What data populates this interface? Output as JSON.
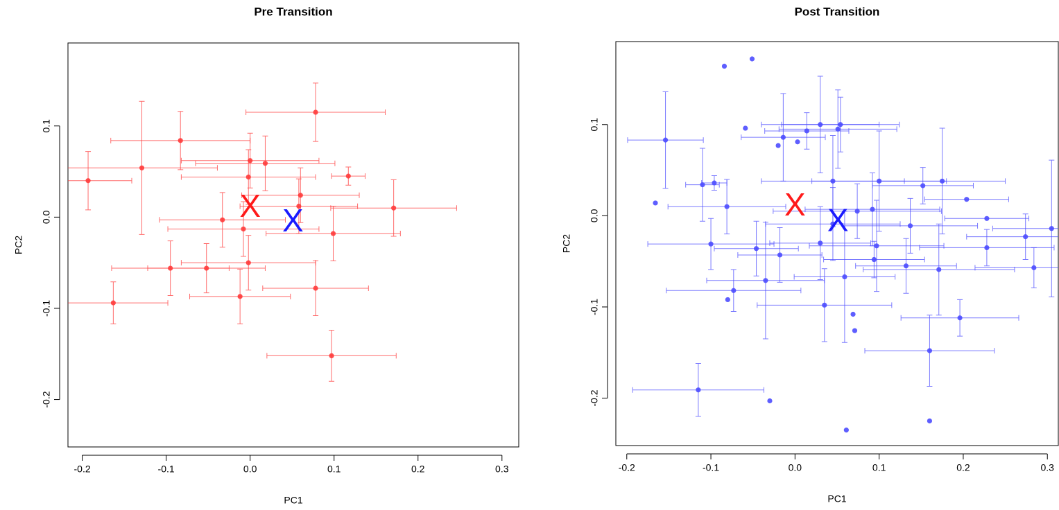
{
  "chart_data": [
    {
      "type": "scatter",
      "title": "Pre Transition",
      "x_label": "PC1",
      "y_label": "PC2",
      "xlim": [
        -0.217,
        0.32
      ],
      "ylim": [
        -0.252,
        0.191
      ],
      "xticks": [
        -0.2,
        -0.1,
        {
          "value": 0,
          "label": "0.0"
        },
        0.1,
        0.2,
        0.3
      ],
      "yticks": [
        -0.2,
        -0.1,
        {
          "value": 0,
          "label": "0.0"
        },
        0.1
      ],
      "series": [
        {
          "color": "#ff3b3b",
          "x": [
            0.078,
            -0.129,
            -0.083,
            -0.193,
            0.0,
            0.018,
            -0.002,
            0.117,
            0.06,
            0.058,
            0.171,
            -0.033,
            -0.008,
            0.099,
            -0.095,
            -0.052,
            -0.002,
            0.078,
            -0.012,
            -0.163,
            0.097
          ],
          "values": [
            0.115,
            0.054,
            0.084,
            0.04,
            0.062,
            0.059,
            0.044,
            0.045,
            0.024,
            0.012,
            0.01,
            -0.003,
            -0.013,
            -0.018,
            -0.056,
            -0.056,
            -0.05,
            -0.078,
            -0.087,
            -0.094,
            -0.152
          ],
          "xerr": [
            0.083,
            0.09,
            0.083,
            0.052,
            0.082,
            0.083,
            0.08,
            0.02,
            0.07,
            0.07,
            0.075,
            0.075,
            0.09,
            0.08,
            0.07,
            0.07,
            0.08,
            0.063,
            0.06,
            0.065,
            0.077
          ],
          "yerr": [
            0.032,
            0.073,
            0.032,
            0.032,
            0.03,
            0.03,
            0.03,
            0.01,
            0.03,
            0.03,
            0.031,
            0.03,
            0.03,
            0.03,
            0.03,
            0.027,
            0.03,
            0.03,
            0.03,
            0.023,
            0.028
          ]
        },
        {
          "color": "#ff1a1a",
          "marker": "X",
          "x": [
            0.0
          ],
          "values": [
            0.011
          ]
        },
        {
          "color": "#1a1aff",
          "marker": "X",
          "x": [
            0.051
          ],
          "values": [
            -0.005
          ]
        }
      ]
    },
    {
      "type": "scatter",
      "title": "Post Transition",
      "x_label": "PC1",
      "y_label": "PC2",
      "xlim": [
        -0.213,
        0.313
      ],
      "ylim": [
        -0.252,
        0.191
      ],
      "xticks": [
        -0.2,
        -0.1,
        {
          "value": 0,
          "label": "0.0"
        },
        0.1,
        0.2,
        0.3
      ],
      "yticks": [
        -0.2,
        -0.1,
        {
          "value": 0,
          "label": "0.0"
        },
        0.1
      ],
      "series": [
        {
          "color": "#4d4dff",
          "x": [
            -0.154,
            -0.084,
            -0.051,
            -0.059,
            -0.166,
            -0.08,
            -0.03,
            0.061,
            0.16,
            0.069,
            0.071,
            0.003,
            -0.02,
            -0.11,
            -0.096,
            -0.081,
            -0.1,
            -0.073,
            -0.115,
            -0.035,
            -0.014,
            0.014,
            0.03,
            0.051,
            0.054,
            0.045,
            0.1,
            0.175,
            0.152,
            0.204,
            0.228,
            0.305,
            0.274,
            0.284,
            0.228,
            0.196,
            0.16,
            0.171,
            0.132,
            0.074,
            0.092,
            0.097,
            0.035,
            0.059,
            0.03,
            -0.046,
            -0.018,
            0.094,
            0.137,
            0.045
          ],
          "values": [
            0.083,
            0.164,
            0.172,
            0.096,
            0.014,
            -0.092,
            -0.203,
            -0.235,
            -0.225,
            -0.108,
            -0.126,
            0.081,
            0.077,
            0.034,
            0.036,
            0.01,
            -0.031,
            -0.082,
            -0.191,
            -0.071,
            0.086,
            0.093,
            0.1,
            0.095,
            0.1,
            0.038,
            0.038,
            0.038,
            0.033,
            0.018,
            -0.003,
            -0.014,
            -0.023,
            -0.057,
            -0.035,
            -0.112,
            -0.148,
            -0.059,
            -0.055,
            0.005,
            0.007,
            -0.033,
            -0.098,
            -0.067,
            -0.03,
            -0.036,
            -0.043,
            -0.048,
            -0.011,
            -0.009
          ],
          "xerr": [
            0.045,
            null,
            null,
            null,
            null,
            null,
            null,
            null,
            null,
            null,
            null,
            null,
            null,
            0.02,
            0.015,
            0.07,
            0.075,
            0.08,
            0.078,
            0.07,
            0.05,
            0.05,
            0.07,
            0.07,
            0.07,
            0.085,
            0.08,
            0.075,
            0.06,
            0.05,
            0.05,
            0.07,
            0.07,
            0.07,
            0.08,
            0.07,
            0.077,
            0.09,
            0.06,
            0.1,
            0.08,
            0.08,
            0.08,
            0.06,
            0.06,
            0.05,
            0.05,
            0.06,
            0.08,
            0.08
          ],
          "yerr": [
            0.053,
            null,
            null,
            null,
            null,
            null,
            null,
            null,
            null,
            null,
            null,
            null,
            null,
            0.04,
            0.008,
            0.03,
            0.028,
            0.023,
            0.029,
            0.064,
            0.048,
            0.02,
            0.053,
            0.043,
            0.03,
            0.05,
            0.055,
            0.058,
            0.02,
            null,
            null,
            0.075,
            0.025,
            0.022,
            0.02,
            0.02,
            0.039,
            0.05,
            0.03,
            0.03,
            0.04,
            0.05,
            0.04,
            0.072,
            0.04,
            0.03,
            0.03,
            0.02,
            0.03,
            0.04
          ]
        },
        {
          "color": "#ff1a1a",
          "marker": "X",
          "x": [
            0.0
          ],
          "values": [
            0.011
          ]
        },
        {
          "color": "#1a1aff",
          "marker": "X",
          "x": [
            0.051
          ],
          "values": [
            -0.006
          ]
        }
      ]
    }
  ]
}
